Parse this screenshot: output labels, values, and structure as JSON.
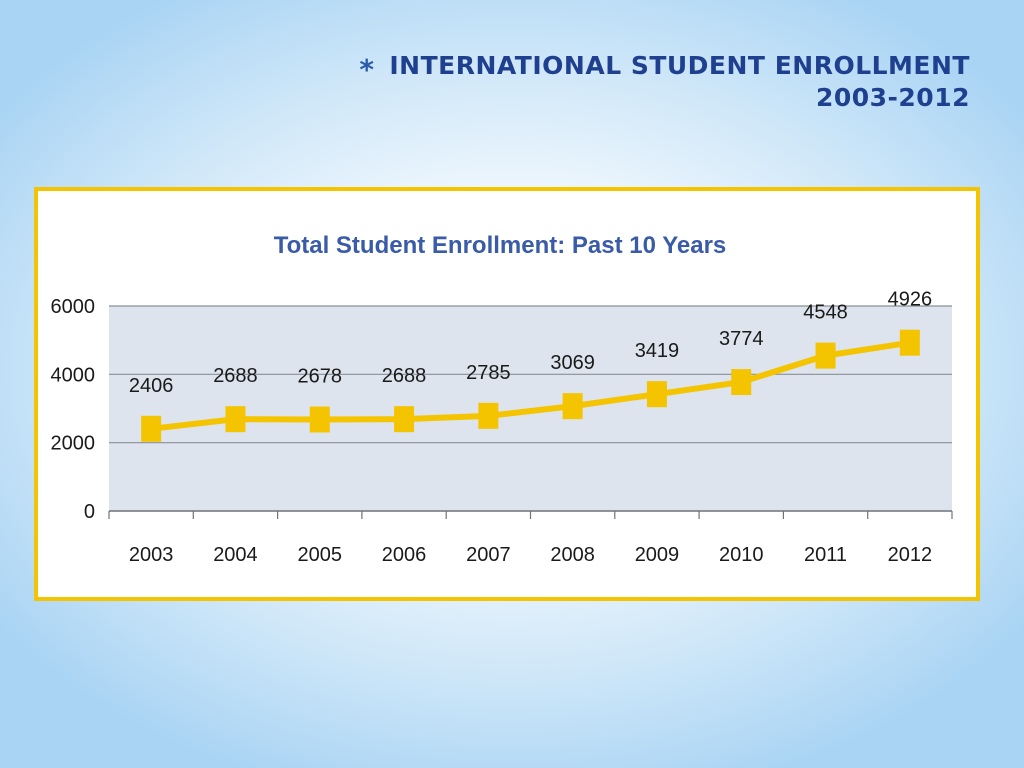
{
  "slide": {
    "bullet": "*",
    "title_line1": "INTERNATIONAL STUDENT ENROLLMENT",
    "title_line2": "2003-2012"
  },
  "colors": {
    "frame": "#f5c400",
    "plot_bg": "#dde4ee",
    "line": "#f5c400",
    "title": "#1f3f8f",
    "chart_title": "#3a5ba8",
    "gridline": "#8a8f98"
  },
  "chart_data": {
    "type": "line",
    "title": "Total Student Enrollment: Past 10 Years",
    "xlabel": "",
    "ylabel": "",
    "categories": [
      "2003",
      "2004",
      "2005",
      "2006",
      "2007",
      "2008",
      "2009",
      "2010",
      "2011",
      "2012"
    ],
    "series": [
      {
        "values": [
          2406,
          2688,
          2678,
          2688,
          2785,
          3069,
          3419,
          3774,
          4548,
          4926
        ]
      }
    ],
    "ylim": [
      0,
      6000
    ],
    "yticks": [
      "0",
      "2000",
      "4000",
      "6000"
    ],
    "data_labels": [
      "2406",
      "2688",
      "2678",
      "2688",
      "2785",
      "3069",
      "3419",
      "3774",
      "4548",
      "4926"
    ],
    "grid": true,
    "legend": "none",
    "marker": "square"
  }
}
